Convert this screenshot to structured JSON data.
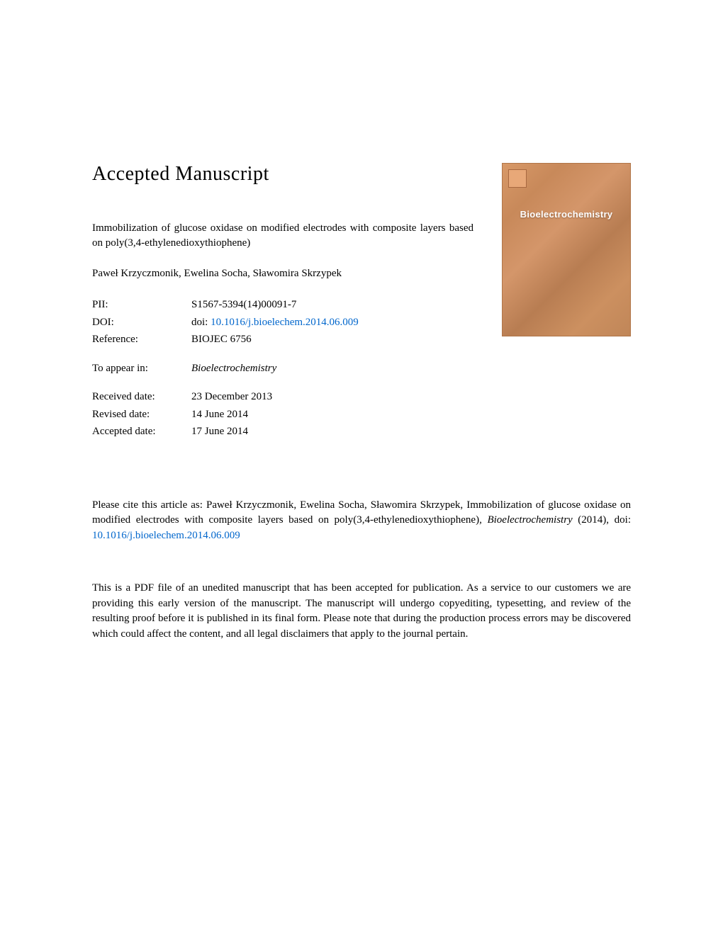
{
  "heading": "Accepted Manuscript",
  "article_title": "Immobilization of glucose oxidase on modified electrodes with composite layers based on poly(3,4-ethylenedioxythiophene)",
  "authors": "Paweł Krzyczmonik, Ewelina Socha, Sławomira Skrzypek",
  "metadata": {
    "pii": {
      "label": "PII:",
      "value": "S1567-5394(14)00091-7"
    },
    "doi": {
      "label": "DOI:",
      "prefix": "doi: ",
      "value": "10.1016/j.bioelechem.2014.06.009"
    },
    "reference": {
      "label": "Reference:",
      "value": "BIOJEC 6756"
    },
    "to_appear": {
      "label": "To appear in:",
      "value": "Bioelectrochemistry"
    },
    "received": {
      "label": "Received date:",
      "value": "23 December 2013"
    },
    "revised": {
      "label": "Revised date:",
      "value": "14 June 2014"
    },
    "accepted": {
      "label": "Accepted date:",
      "value": "17 June 2014"
    }
  },
  "cover": {
    "journal_title": "Bioelectrochemistry"
  },
  "citation": {
    "prefix": "Please cite this article as: Paweł Krzyczmonik, Ewelina Socha, Sławomira Skrzypek, Immobilization of glucose oxidase on modified electrodes with composite layers based on poly(3,4-ethylenedioxythiophene), ",
    "journal": "Bioelectrochemistry",
    "year": " (2014), doi: ",
    "doi_link": "10.1016/j.bioelechem.2014.06.009"
  },
  "disclaimer": "This is a PDF file of an unedited manuscript that has been accepted for publication. As a service to our customers we are providing this early version of the manuscript. The manuscript will undergo copyediting, typesetting, and review of the resulting proof before it is published in its final form. Please note that during the production process errors may be discovered which could affect the content, and all legal disclaimers that apply to the journal pertain.",
  "colors": {
    "text": "#000000",
    "link": "#0066cc",
    "cover_bg": "#c8895a",
    "background": "#ffffff"
  }
}
